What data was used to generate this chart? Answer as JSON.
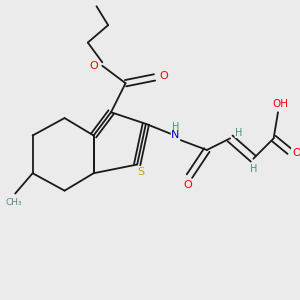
{
  "bg_color": "#ebebeb",
  "atom_colors": {
    "O": "#ff0000",
    "N": "#0000cc",
    "S": "#bbaa00",
    "H": "#558888"
  },
  "bond_color": "#1a1a1a",
  "bond_width": 1.3,
  "figsize": [
    3.0,
    3.0
  ],
  "dpi": 100,
  "xlim": [
    0,
    10
  ],
  "ylim": [
    0,
    10
  ]
}
